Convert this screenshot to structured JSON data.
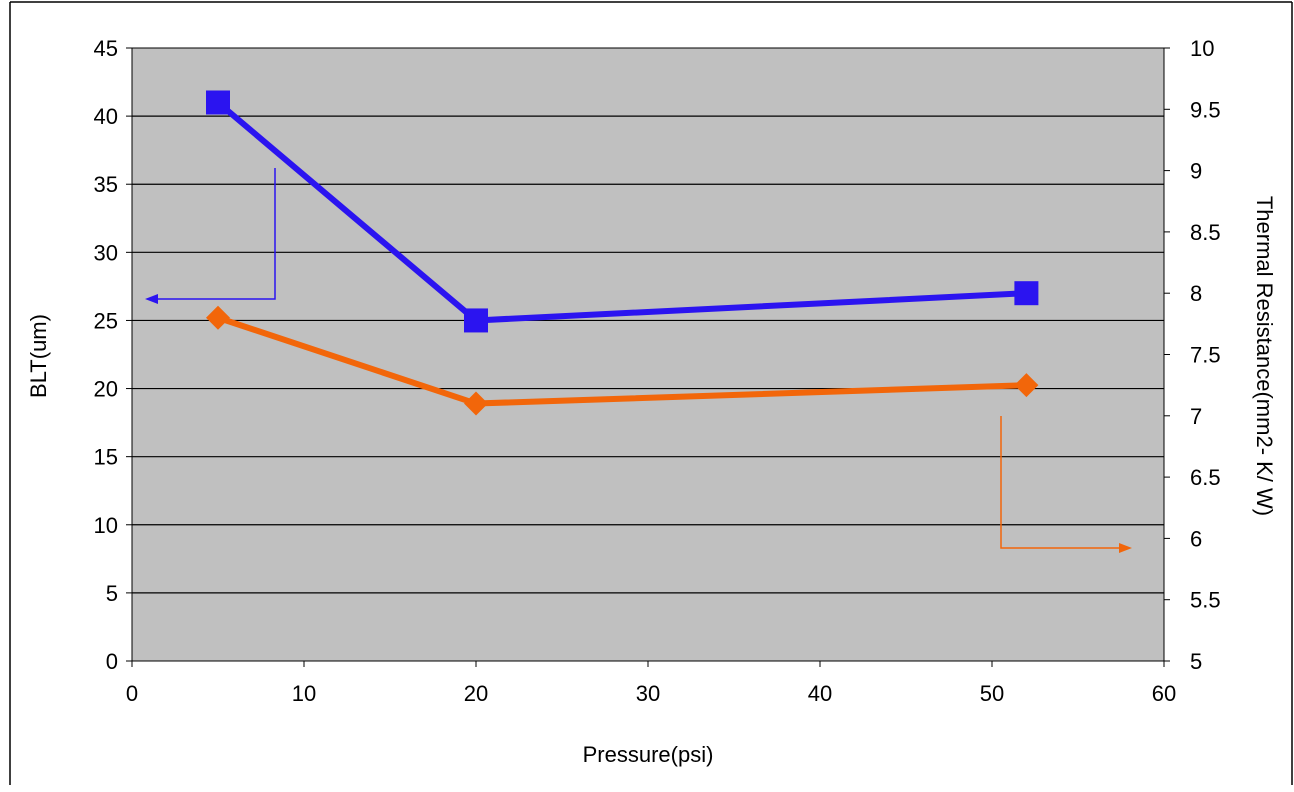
{
  "chart_data": {
    "type": "line",
    "title": "",
    "xlabel": "Pressure(psi)",
    "ylabel": "BLT(um)",
    "y2label": "Thermal Resistance(mm2- K/ W)",
    "xlim": [
      0,
      60
    ],
    "ylim": [
      0,
      45
    ],
    "y2lim": [
      5,
      10
    ],
    "x_ticks": [
      "0",
      "10",
      "20",
      "30",
      "40",
      "50",
      "60"
    ],
    "y_ticks": [
      "0",
      "5",
      "10",
      "15",
      "20",
      "25",
      "30",
      "35",
      "40",
      "45"
    ],
    "y2_ticks": [
      "5",
      "5.5",
      "6",
      "6.5",
      "7",
      "7.5",
      "8",
      "8.5",
      "9",
      "9.5",
      "10"
    ],
    "grid": true,
    "legend": "none",
    "background_color": "#c0c0c0",
    "series": [
      {
        "axis": "left",
        "color": "#2b14f0",
        "marker": "square",
        "x": [
          5,
          20,
          52
        ],
        "values": [
          41,
          25,
          27
        ]
      },
      {
        "axis": "right",
        "color": "#f2660a",
        "marker": "diamond",
        "x": [
          5,
          20,
          52
        ],
        "values": [
          7.8,
          7.1,
          7.25
        ]
      }
    ]
  }
}
